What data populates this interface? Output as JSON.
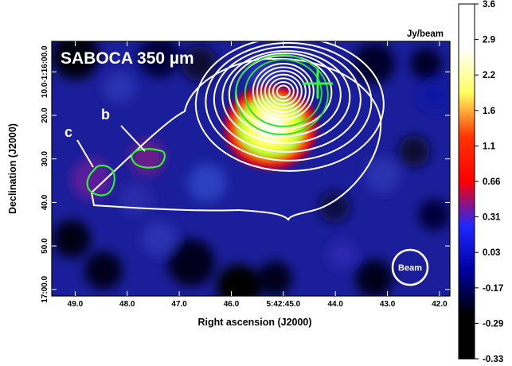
{
  "chart_data": {
    "type": "heatmap",
    "title": "SABOCA 350 µm",
    "xlabel": "Right ascension (J2000)",
    "ylabel": "Declination (J2000)",
    "x_ticks": [
      {
        "label": "49.0",
        "ra_s": 49.0
      },
      {
        "label": "48.0",
        "ra_s": 48.0
      },
      {
        "label": "47.0",
        "ra_s": 47.0
      },
      {
        "label": "46.0",
        "ra_s": 46.0
      },
      {
        "label": "5:42:45.0",
        "ra_s": 45.0
      },
      {
        "label": "44.0",
        "ra_s": 44.0
      },
      {
        "label": "43.0",
        "ra_s": 43.0
      },
      {
        "label": "42.0",
        "ra_s": 42.0
      }
    ],
    "y_ticks": [
      {
        "label": "10.0-1:16:00.0",
        "dec_as": 10.0
      },
      {
        "label": "20.0",
        "dec_as": 20.0
      },
      {
        "label": "30.0",
        "dec_as": 30.0
      },
      {
        "label": "40.0",
        "dec_as": 40.0
      },
      {
        "label": "50.0",
        "dec_as": 50.0
      },
      {
        "label": "17:00.0",
        "dec_as": 60.0
      }
    ],
    "xlim": [
      49.45,
      41.8
    ],
    "ylim": [
      3.0,
      61.5
    ],
    "colorbar": {
      "unit": "Jy/beam",
      "scale": "nonlinear",
      "ticks": [
        {
          "label": "3.6",
          "value": 3.6
        },
        {
          "label": "2.9",
          "value": 2.9
        },
        {
          "label": "2.2",
          "value": 2.2
        },
        {
          "label": "1.6",
          "value": 1.6
        },
        {
          "label": "1.1",
          "value": 1.1
        },
        {
          "label": "0.66",
          "value": 0.66
        },
        {
          "label": "0.31",
          "value": 0.31
        },
        {
          "label": "0.03",
          "value": 0.03
        },
        {
          "label": "-0.17",
          "value": -0.17
        },
        {
          "label": "-0.29",
          "value": -0.29
        },
        {
          "label": "-0.33",
          "value": -0.33
        }
      ],
      "colors": [
        "#ffffff",
        "#ffffff",
        "#ffff60",
        "#ff3300",
        "#ff0000",
        "#1e28ff",
        "#0000a0",
        "#000000",
        "#000000"
      ]
    },
    "peak": {
      "ra_s": 45.0,
      "dec_as": 14.5,
      "value": 3.6
    },
    "cross_marker": {
      "ra_s": 44.35,
      "dec_as": 8.0,
      "color": "#33ff33"
    },
    "sources": [
      {
        "label": "b",
        "ra_s": 47.6,
        "dec_as": 23.0
      },
      {
        "label": "c",
        "ra_s": 48.5,
        "dec_as": 30.5
      }
    ],
    "beam_label": "Beam",
    "beam_position": "bottom-right"
  },
  "colors": {
    "contour": "#ffffff",
    "source_outline": "#33ee33",
    "background": "#1a1e9a"
  }
}
